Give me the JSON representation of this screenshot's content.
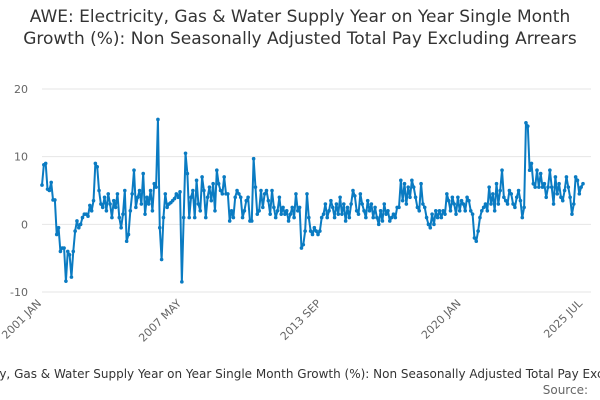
{
  "chart_data": {
    "type": "line",
    "title": "AWE: Electricity, Gas & Water Supply Year on Year Single Month Growth (%): Non Seasonally Adjusted Total Pay Excluding Arrears",
    "source": "Source:",
    "categories": [
      "2001 JAN",
      null,
      null,
      null,
      null,
      null,
      null,
      null,
      null,
      null,
      null,
      null,
      null,
      null,
      null,
      null,
      null,
      null,
      null,
      null,
      null,
      null,
      null,
      null,
      null,
      null,
      null,
      null,
      null,
      null,
      null,
      null,
      null,
      null,
      null,
      null,
      null,
      null,
      null,
      null,
      null,
      null,
      null,
      null,
      null,
      null,
      null,
      null,
      null,
      null,
      null,
      null,
      null,
      null,
      null,
      null,
      null,
      null,
      null,
      null,
      null,
      null,
      null,
      null,
      null,
      null,
      null,
      null,
      null,
      null,
      null,
      null,
      null,
      null,
      null,
      null,
      "2007 MAY",
      null,
      null,
      null,
      null,
      null,
      null,
      null,
      null,
      null,
      null,
      null,
      null,
      null,
      null,
      null,
      null,
      null,
      null,
      null,
      null,
      null,
      null,
      null,
      null,
      null,
      null,
      null,
      null,
      null,
      null,
      null,
      null,
      null,
      null,
      null,
      null,
      null,
      null,
      null,
      null,
      null,
      null,
      null,
      null,
      null,
      null,
      null,
      null,
      null,
      null,
      null,
      null,
      null,
      null,
      null,
      null,
      null,
      null,
      null,
      null,
      null,
      null,
      null,
      null,
      null,
      null,
      null,
      null,
      null,
      null,
      null,
      null,
      null,
      null,
      null,
      "2013 SEP",
      null,
      null,
      null,
      null,
      null,
      null,
      null,
      null,
      null,
      null,
      null,
      null,
      null,
      null,
      null,
      null,
      null,
      null,
      null,
      null,
      null,
      null,
      null,
      null,
      null,
      null,
      null,
      null,
      null,
      null,
      null,
      null,
      null,
      null,
      null,
      null,
      null,
      null,
      null,
      null,
      null,
      null,
      null,
      null,
      null,
      null,
      null,
      null,
      null,
      null,
      null,
      null,
      null,
      null,
      null,
      null,
      null,
      null,
      null,
      null,
      null,
      null,
      null,
      null,
      null,
      null,
      null,
      null,
      null,
      null,
      null,
      null,
      null,
      null,
      null,
      "2020 JAN",
      null,
      null,
      null,
      null,
      null,
      null,
      null,
      null,
      null,
      null,
      null,
      null,
      null,
      null,
      null,
      null,
      null,
      null,
      null,
      null,
      null,
      null,
      null,
      null,
      null,
      null,
      null,
      null,
      null,
      null,
      null,
      null,
      null,
      null,
      null,
      null,
      null,
      null,
      null,
      null,
      null,
      null,
      null,
      null,
      null,
      null,
      null,
      null,
      null,
      null,
      null,
      null,
      null,
      null,
      null,
      null,
      null,
      null,
      null,
      null,
      null,
      null,
      null,
      null,
      null,
      "2025 JUL"
    ],
    "series": [
      {
        "name": "AWE: Electricity, Gas & Water Supply Year on Year Single Month Growth (%): Non Seasonally Adjusted Total Pay Excluding Arrears",
        "color": "#0a7bc2",
        "values": [
          5.8,
          8.8,
          9.0,
          5.2,
          5.0,
          6.2,
          3.6,
          3.6,
          -1.5,
          -0.5,
          -4,
          -3.5,
          -3.5,
          -8.4,
          -4,
          -4.5,
          -7.8,
          -4,
          -1,
          0.5,
          -0.5,
          0,
          1,
          1.5,
          1.5,
          1.2,
          2.8,
          2,
          3.5,
          9,
          8.5,
          5,
          3,
          2.5,
          4,
          2,
          4.5,
          3,
          1,
          3.5,
          2.5,
          4.5,
          1,
          -0.5,
          1.5,
          5,
          -2.5,
          -1.5,
          2,
          4.5,
          8,
          2.5,
          4,
          5,
          3,
          7.5,
          1.5,
          4,
          3,
          5,
          2,
          6,
          5.5,
          15.5,
          -0.5,
          -5.2,
          1,
          4.5,
          2.5,
          3,
          3.2,
          3.5,
          3.8,
          4.5,
          4,
          4.8,
          -8.5,
          1,
          10.5,
          7.5,
          1,
          4,
          5,
          1,
          6.5,
          3,
          2,
          7,
          5,
          1,
          4,
          5.5,
          3.5,
          6,
          2,
          8,
          6,
          5,
          4.5,
          7,
          4.5,
          4.5,
          0.5,
          2,
          1,
          4,
          5,
          4.5,
          4,
          1,
          2,
          3.5,
          4,
          0.5,
          0.5,
          9.7,
          5.5,
          1.5,
          2,
          5,
          2.5,
          4.5,
          5,
          3.5,
          1.5,
          5,
          2.5,
          1,
          2,
          4,
          1.5,
          2.5,
          1.5,
          2,
          0.5,
          1.5,
          2.5,
          1,
          4.5,
          2,
          2.5,
          -3.5,
          -3,
          -1,
          4.5,
          1,
          -1,
          -1.5,
          -0.5,
          -1,
          -1.5,
          -1,
          1,
          1.5,
          3,
          1,
          2,
          3.5,
          2.5,
          1,
          3,
          1.5,
          4,
          1.5,
          3,
          0.5,
          2.5,
          1,
          3,
          5,
          4.2,
          2,
          1.5,
          4.5,
          3,
          2,
          1,
          3.5,
          2,
          3,
          1,
          2.5,
          1,
          0,
          2,
          0.5,
          3,
          1.5,
          2,
          0.5,
          1,
          1.5,
          1,
          2.5,
          2.5,
          6.5,
          3.5,
          6,
          3,
          5.5,
          4,
          6.5,
          5.5,
          4,
          2.5,
          2,
          6,
          3,
          2.5,
          1,
          0,
          -0.5,
          1.5,
          0,
          2,
          1,
          2,
          1,
          2,
          1.5,
          4.5,
          3.5,
          2,
          4,
          3,
          1.5,
          4,
          2,
          3.5,
          3,
          2,
          4,
          3.5,
          2,
          1.5,
          -2,
          -2.5,
          -1,
          1,
          2,
          2.5,
          3,
          2,
          5.5,
          3,
          4.5,
          2,
          6,
          3,
          5,
          8,
          4,
          3.5,
          3,
          5,
          4.5,
          3,
          2.5,
          4,
          5,
          3.5,
          1,
          2.5,
          15,
          14.5,
          8,
          9,
          6,
          5.5,
          8,
          5.5,
          7.5,
          5.5,
          6,
          4,
          5.5,
          8,
          5.5,
          3,
          7,
          4.5,
          6,
          4,
          3.5,
          5,
          7,
          5.5,
          4,
          1.5,
          3,
          7,
          6.5,
          4.5,
          5.5,
          6
        ]
      }
    ],
    "ylim": [
      -10,
      20
    ],
    "yticks": [
      -10,
      0,
      10,
      20
    ],
    "grid": true
  }
}
